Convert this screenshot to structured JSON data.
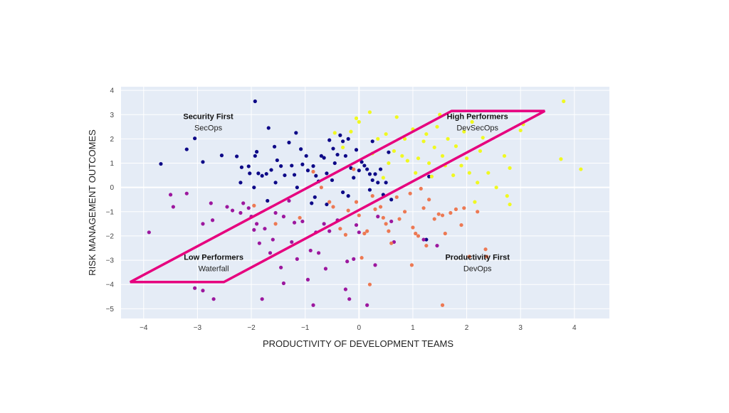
{
  "chart_data": {
    "type": "scatter",
    "title": "",
    "xlabel": "PRODUCTIVITY OF DEVELOPMENT TEAMS",
    "ylabel": "RISK MANAGEMENT OUTCOMES",
    "xlim": [
      -4.42,
      4.65
    ],
    "ylim": [
      -5.4,
      4.15
    ],
    "xticks": [
      -4,
      -3,
      -2,
      -1,
      0,
      1,
      2,
      3,
      4
    ],
    "xtick_labels": [
      "−4",
      "−3",
      "−2",
      "−1",
      "0",
      "1",
      "2",
      "3",
      "4"
    ],
    "yticks": [
      4,
      3,
      2,
      1,
      0,
      -1,
      -2,
      -3,
      -4,
      -5
    ],
    "ytick_labels": [
      "4",
      "3",
      "2",
      "1",
      "0",
      "−1",
      "−2",
      "−3",
      "−4",
      "−5"
    ],
    "grid": true,
    "background": "#e5ecf6",
    "highlight": {
      "color": "#e6007e",
      "polygon": [
        [
          -4.25,
          -3.9
        ],
        [
          -2.51,
          -3.9
        ],
        [
          3.45,
          3.15
        ],
        [
          1.72,
          3.15
        ]
      ]
    },
    "annotations": [
      {
        "title": "Security First",
        "subtitle": "SecOps",
        "x": -2.8,
        "y": 2.7
      },
      {
        "title": "High Performers",
        "subtitle": "DevSecOps",
        "x": 2.2,
        "y": 2.7
      },
      {
        "title": "Low Performers",
        "subtitle": "Waterfall",
        "x": -2.7,
        "y": -3.1
      },
      {
        "title": "Productivity First",
        "subtitle": "DevOps",
        "x": 2.2,
        "y": -3.1
      }
    ],
    "series": [
      {
        "name": "SecOps",
        "color": "#0d0887",
        "points": [
          [
            -3.68,
            0.97
          ],
          [
            -3.2,
            1.57
          ],
          [
            -3.05,
            2.02
          ],
          [
            -2.9,
            1.05
          ],
          [
            -2.55,
            1.32
          ],
          [
            -1.93,
            3.55
          ],
          [
            -1.68,
            2.45
          ],
          [
            -1.17,
            2.25
          ],
          [
            -2.27,
            1.28
          ],
          [
            -2.18,
            0.83
          ],
          [
            -2.05,
            0.87
          ],
          [
            -2.03,
            0.58
          ],
          [
            -1.93,
            1.3
          ],
          [
            -1.9,
            1.47
          ],
          [
            -1.87,
            0.58
          ],
          [
            -1.8,
            0.48
          ],
          [
            -1.72,
            0.56
          ],
          [
            -1.63,
            0.72
          ],
          [
            -1.57,
            1.68
          ],
          [
            -1.52,
            1.12
          ],
          [
            -1.45,
            0.88
          ],
          [
            -1.38,
            0.5
          ],
          [
            -1.3,
            1.85
          ],
          [
            -1.25,
            0.9
          ],
          [
            -1.2,
            0.52
          ],
          [
            -1.15,
            0.0
          ],
          [
            -1.08,
            1.58
          ],
          [
            -1.05,
            0.95
          ],
          [
            -0.98,
            1.3
          ],
          [
            -0.95,
            0.7
          ],
          [
            -0.85,
            0.88
          ],
          [
            -0.8,
            0.48
          ],
          [
            -0.75,
            0.25
          ],
          [
            -0.7,
            1.3
          ],
          [
            -0.65,
            1.22
          ],
          [
            -0.6,
            0.58
          ],
          [
            -0.55,
            1.95
          ],
          [
            -0.5,
            0.3
          ],
          [
            -0.48,
            1.6
          ],
          [
            -0.45,
            1.0
          ],
          [
            -0.4,
            1.35
          ],
          [
            -0.35,
            2.15
          ],
          [
            -0.3,
            1.9
          ],
          [
            -0.25,
            1.3
          ],
          [
            -0.2,
            2.0
          ],
          [
            -0.15,
            0.8
          ],
          [
            -0.1,
            0.4
          ],
          [
            -0.05,
            1.55
          ],
          [
            0.0,
            0.7
          ],
          [
            0.05,
            1.05
          ],
          [
            0.1,
            0.9
          ],
          [
            0.15,
            0.75
          ],
          [
            0.2,
            0.55
          ],
          [
            0.25,
            0.3
          ],
          [
            0.3,
            0.55
          ],
          [
            0.35,
            0.2
          ],
          [
            0.4,
            0.75
          ],
          [
            0.45,
            -0.3
          ],
          [
            0.5,
            0.2
          ],
          [
            0.55,
            1.45
          ],
          [
            0.6,
            -0.5
          ],
          [
            0.25,
            1.9
          ],
          [
            -0.6,
            -0.7
          ],
          [
            -0.82,
            -0.4
          ],
          [
            -1.55,
            0.2
          ],
          [
            -1.95,
            0.0
          ],
          [
            -2.2,
            0.2
          ],
          [
            -1.7,
            -0.55
          ],
          [
            -0.88,
            -0.65
          ],
          [
            1.25,
            -2.15
          ],
          [
            1.3,
            0.45
          ],
          [
            0.2,
            -0.1
          ],
          [
            -0.2,
            -0.35
          ],
          [
            -0.3,
            -0.2
          ]
        ]
      },
      {
        "name": "Waterfall",
        "color": "#9c179e",
        "points": [
          [
            -3.9,
            -1.85
          ],
          [
            -3.5,
            -0.3
          ],
          [
            -3.45,
            -0.8
          ],
          [
            -3.2,
            -0.25
          ],
          [
            -2.9,
            -1.5
          ],
          [
            -2.72,
            -1.35
          ],
          [
            -2.75,
            -0.65
          ],
          [
            -3.05,
            -4.15
          ],
          [
            -2.9,
            -4.25
          ],
          [
            -2.7,
            -4.6
          ],
          [
            -2.45,
            -0.8
          ],
          [
            -2.35,
            -0.95
          ],
          [
            -2.2,
            -1.05
          ],
          [
            -2.15,
            -0.65
          ],
          [
            -2.05,
            -0.85
          ],
          [
            -2.0,
            -1.2
          ],
          [
            -1.95,
            -1.75
          ],
          [
            -1.9,
            -1.5
          ],
          [
            -1.85,
            -2.3
          ],
          [
            -1.8,
            -4.6
          ],
          [
            -1.75,
            -1.7
          ],
          [
            -1.6,
            -2.15
          ],
          [
            -1.55,
            -1.05
          ],
          [
            -1.45,
            -3.3
          ],
          [
            -1.4,
            -1.2
          ],
          [
            -1.4,
            -3.95
          ],
          [
            -1.3,
            -0.55
          ],
          [
            -1.25,
            -2.25
          ],
          [
            -1.2,
            -1.45
          ],
          [
            -1.15,
            -2.95
          ],
          [
            -1.05,
            -1.4
          ],
          [
            -0.95,
            -3.8
          ],
          [
            -0.9,
            -2.6
          ],
          [
            -0.8,
            -1.85
          ],
          [
            -0.75,
            -2.7
          ],
          [
            -0.65,
            -1.5
          ],
          [
            -0.62,
            -3.35
          ],
          [
            -0.55,
            -1.8
          ],
          [
            -0.4,
            -1.35
          ],
          [
            -0.25,
            -4.2
          ],
          [
            -0.22,
            -3.05
          ],
          [
            -0.18,
            -4.6
          ],
          [
            -0.1,
            -2.95
          ],
          [
            -0.05,
            -1.55
          ],
          [
            0.0,
            -1.85
          ],
          [
            0.15,
            -4.85
          ],
          [
            0.3,
            -3.2
          ],
          [
            0.35,
            -1.2
          ],
          [
            0.6,
            -1.4
          ],
          [
            0.65,
            -2.25
          ],
          [
            1.2,
            -2.15
          ],
          [
            1.45,
            -2.4
          ],
          [
            -0.85,
            -4.85
          ],
          [
            -1.65,
            -2.7
          ]
        ]
      },
      {
        "name": "DevOps",
        "color": "#ed7953",
        "points": [
          [
            -0.85,
            0.65
          ],
          [
            -0.7,
            0.0
          ],
          [
            -0.55,
            -0.6
          ],
          [
            -0.48,
            -0.8
          ],
          [
            -0.35,
            -1.7
          ],
          [
            -0.25,
            -1.95
          ],
          [
            -0.2,
            -0.95
          ],
          [
            -0.1,
            0.75
          ],
          [
            -0.05,
            -0.6
          ],
          [
            0.0,
            -1.15
          ],
          [
            0.05,
            -2.9
          ],
          [
            0.1,
            -1.9
          ],
          [
            0.15,
            -1.8
          ],
          [
            0.2,
            -4.0
          ],
          [
            0.25,
            -0.35
          ],
          [
            0.3,
            -0.9
          ],
          [
            0.4,
            -0.8
          ],
          [
            0.45,
            -1.25
          ],
          [
            0.5,
            -1.5
          ],
          [
            0.55,
            -1.8
          ],
          [
            0.6,
            -2.3
          ],
          [
            0.7,
            -0.4
          ],
          [
            0.75,
            -1.3
          ],
          [
            0.85,
            -1.0
          ],
          [
            0.95,
            -0.25
          ],
          [
            1.0,
            -1.65
          ],
          [
            1.05,
            -1.9
          ],
          [
            1.1,
            -2.0
          ],
          [
            0.98,
            -3.2
          ],
          [
            1.15,
            -0.05
          ],
          [
            1.2,
            -0.85
          ],
          [
            1.25,
            -2.4
          ],
          [
            1.3,
            -0.5
          ],
          [
            1.4,
            -1.3
          ],
          [
            1.48,
            -1.1
          ],
          [
            1.55,
            -1.15
          ],
          [
            1.6,
            -1.9
          ],
          [
            1.55,
            -4.85
          ],
          [
            1.7,
            -1.05
          ],
          [
            1.8,
            -0.9
          ],
          [
            1.9,
            -1.55
          ],
          [
            1.95,
            -0.85
          ],
          [
            2.05,
            -2.85
          ],
          [
            2.2,
            -1.0
          ],
          [
            2.35,
            -2.55
          ],
          [
            2.37,
            -2.85
          ],
          [
            -1.1,
            -1.25
          ],
          [
            -1.55,
            -1.5
          ],
          [
            -1.95,
            -0.75
          ]
        ]
      },
      {
        "name": "DevSecOps",
        "color": "#f0f921",
        "points": [
          [
            -0.45,
            2.25
          ],
          [
            -0.3,
            1.65
          ],
          [
            -0.15,
            2.3
          ],
          [
            -0.05,
            2.85
          ],
          [
            0.0,
            2.7
          ],
          [
            0.2,
            3.1
          ],
          [
            0.25,
            1.4
          ],
          [
            0.35,
            2.0
          ],
          [
            0.5,
            2.2
          ],
          [
            0.55,
            1.0
          ],
          [
            0.65,
            1.5
          ],
          [
            0.7,
            2.9
          ],
          [
            0.8,
            1.3
          ],
          [
            0.85,
            2.0
          ],
          [
            0.9,
            1.1
          ],
          [
            1.0,
            2.4
          ],
          [
            1.05,
            0.6
          ],
          [
            1.1,
            1.2
          ],
          [
            1.2,
            1.9
          ],
          [
            1.25,
            2.2
          ],
          [
            1.3,
            1.0
          ],
          [
            1.35,
            0.45
          ],
          [
            1.4,
            1.65
          ],
          [
            1.45,
            2.5
          ],
          [
            1.5,
            3.0
          ],
          [
            1.55,
            1.3
          ],
          [
            1.6,
            0.9
          ],
          [
            1.65,
            2.0
          ],
          [
            1.75,
            0.5
          ],
          [
            1.8,
            1.7
          ],
          [
            1.9,
            0.9
          ],
          [
            1.95,
            2.3
          ],
          [
            2.0,
            1.2
          ],
          [
            2.05,
            0.6
          ],
          [
            2.1,
            2.7
          ],
          [
            2.15,
            -0.6
          ],
          [
            2.2,
            0.2
          ],
          [
            2.25,
            1.5
          ],
          [
            2.3,
            2.05
          ],
          [
            2.4,
            0.6
          ],
          [
            2.55,
            0.0
          ],
          [
            2.7,
            1.3
          ],
          [
            2.75,
            -0.35
          ],
          [
            2.8,
            0.8
          ],
          [
            2.8,
            -0.7
          ],
          [
            3.0,
            2.35
          ],
          [
            3.05,
            2.6
          ],
          [
            3.8,
            3.55
          ],
          [
            3.75,
            1.17
          ],
          [
            4.12,
            0.75
          ],
          [
            0.45,
            0.4
          ]
        ]
      }
    ]
  }
}
